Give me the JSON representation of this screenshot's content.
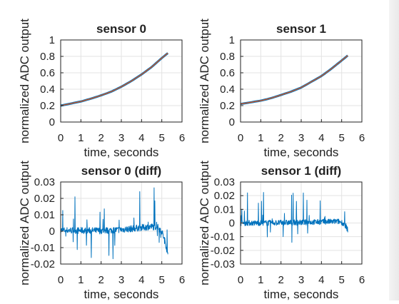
{
  "chart_data": [
    {
      "type": "line",
      "title": "sensor 0",
      "xlabel": "time, seconds",
      "ylabel": "normalized ADC output",
      "xlim": [
        0,
        6
      ],
      "ylim": [
        0,
        1
      ],
      "xticks": [
        "0",
        "1",
        "2",
        "3",
        "4",
        "5",
        "6"
      ],
      "yticks": [
        "0",
        "0.2",
        "0.4",
        "0.6",
        "0.8",
        "1"
      ],
      "grid": true,
      "series": [
        {
          "color": "#0072bd",
          "x": [
            0,
            0.5,
            1,
            1.5,
            2,
            2.5,
            3,
            3.5,
            4,
            4.5,
            5,
            5.3
          ],
          "y": [
            0.2,
            0.225,
            0.25,
            0.285,
            0.325,
            0.37,
            0.43,
            0.5,
            0.58,
            0.67,
            0.78,
            0.84
          ]
        },
        {
          "color": "#d95319",
          "x": [
            0,
            0.5,
            1,
            1.5,
            2,
            2.5,
            3,
            3.5,
            4,
            4.5,
            5,
            5.3
          ],
          "y": [
            0.2,
            0.225,
            0.25,
            0.285,
            0.325,
            0.37,
            0.43,
            0.5,
            0.58,
            0.67,
            0.78,
            0.84
          ]
        }
      ]
    },
    {
      "type": "line",
      "title": "sensor 1",
      "xlabel": "time, seconds",
      "ylabel": "normalized ADC output",
      "xlim": [
        0,
        6
      ],
      "ylim": [
        0,
        1
      ],
      "xticks": [
        "0",
        "1",
        "2",
        "3",
        "4",
        "5",
        "6"
      ],
      "yticks": [
        "0",
        "0.2",
        "0.4",
        "0.6",
        "0.8",
        "1"
      ],
      "grid": true,
      "series": [
        {
          "color": "#0072bd",
          "x": [
            0,
            0.5,
            1,
            1.5,
            2,
            2.5,
            3,
            3.5,
            4,
            4.5,
            5,
            5.3
          ],
          "y": [
            0.22,
            0.24,
            0.26,
            0.29,
            0.33,
            0.37,
            0.42,
            0.49,
            0.56,
            0.65,
            0.75,
            0.81
          ]
        },
        {
          "color": "#d95319",
          "x": [
            0,
            0.5,
            1,
            1.5,
            2,
            2.5,
            3,
            3.5,
            4,
            4.5,
            5,
            5.3
          ],
          "y": [
            0.22,
            0.24,
            0.26,
            0.29,
            0.33,
            0.37,
            0.42,
            0.49,
            0.56,
            0.65,
            0.75,
            0.81
          ]
        }
      ]
    },
    {
      "type": "line",
      "title": "sensor 0 (diff)",
      "xlabel": "time, seconds",
      "ylabel": "normalized ADC output",
      "xlim": [
        0,
        6
      ],
      "ylim": [
        -0.02,
        0.03
      ],
      "xticks": [
        "0",
        "1",
        "2",
        "3",
        "4",
        "5",
        "6"
      ],
      "yticks": [
        "-0.02",
        "-0.01",
        "0",
        "0.01",
        "0.02",
        "0.03"
      ],
      "grid": true,
      "series": [
        {
          "color": "#0072bd",
          "x": [
            0,
            0.5,
            1,
            1.5,
            2,
            2.5,
            3,
            3.5,
            4,
            4.5,
            4.8,
            5.0,
            5.2,
            5.3
          ],
          "y": [
            0.0005,
            0.0005,
            0.0004,
            0.0004,
            0.0003,
            0.0006,
            0.001,
            0.0015,
            0.0022,
            0.0028,
            0.0025,
            0.0,
            -0.008,
            -0.015
          ]
        }
      ]
    },
    {
      "type": "line",
      "title": "sensor 1 (diff)",
      "xlabel": "time, seconds",
      "ylabel": "normalized ADC output",
      "xlim": [
        0,
        6
      ],
      "ylim": [
        -0.03,
        0.03
      ],
      "xticks": [
        "0",
        "1",
        "2",
        "3",
        "4",
        "5",
        "6"
      ],
      "yticks": [
        "-0.03",
        "-0.02",
        "-0.01",
        "0",
        "0.01",
        "0.02",
        "0.03"
      ],
      "grid": true,
      "series": [
        {
          "color": "#0072bd",
          "x": [
            0,
            0.5,
            1,
            1.5,
            2,
            2.5,
            3,
            3.5,
            4,
            4.5,
            4.8,
            5.0,
            5.2,
            5.3
          ],
          "y": [
            0.0,
            0.0,
            0.0,
            0.0001,
            0.0002,
            0.0003,
            0.0004,
            0.0006,
            0.0008,
            0.001,
            0.0012,
            0.0005,
            -0.002,
            -0.005
          ]
        }
      ]
    }
  ]
}
